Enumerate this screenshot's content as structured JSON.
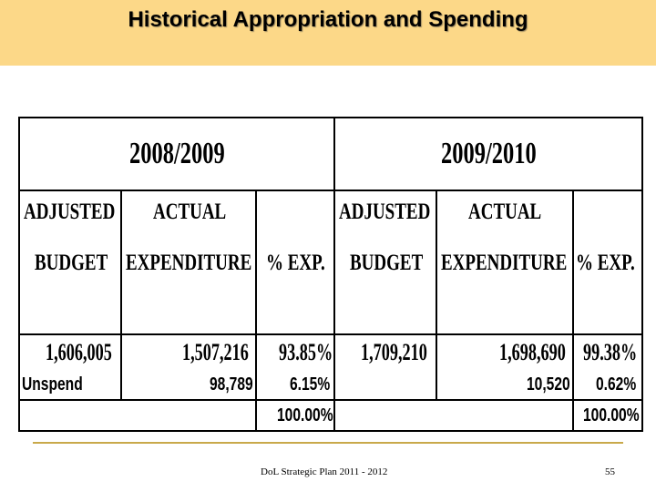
{
  "slide": {
    "title": "Historical Appropriation and Spending"
  },
  "table": {
    "years": [
      "2008/2009",
      "2009/2010"
    ],
    "headers": {
      "adjusted_line1": "ADJUSTED",
      "budget_line2": "BUDGET",
      "actual_line1": "ACTUAL",
      "expenditure_line2": "EXPENDITURE",
      "pct_exp": "% EXP."
    },
    "y2008": {
      "adjusted_budget": "1,606,005",
      "actual_expenditure": "1,507,216",
      "pct_exp": "93.85%",
      "unspend_amount": "98,789",
      "unspend_pct": "6.15%",
      "total_pct": "100.00%"
    },
    "y2009": {
      "adjusted_budget": "1,709,210",
      "actual_expenditure": "1,698,690",
      "pct_exp": "99.38%",
      "unspend_amount": "10,520",
      "unspend_pct": "0.62%",
      "total_pct": "100.00%"
    },
    "unspend_label": "Unspend"
  },
  "footer": {
    "text": "DoL Strategic Plan 2011 - 2012",
    "page_number": "55"
  },
  "colors": {
    "header_band": "#fcd888",
    "footer_rule": "#c9a94a"
  }
}
